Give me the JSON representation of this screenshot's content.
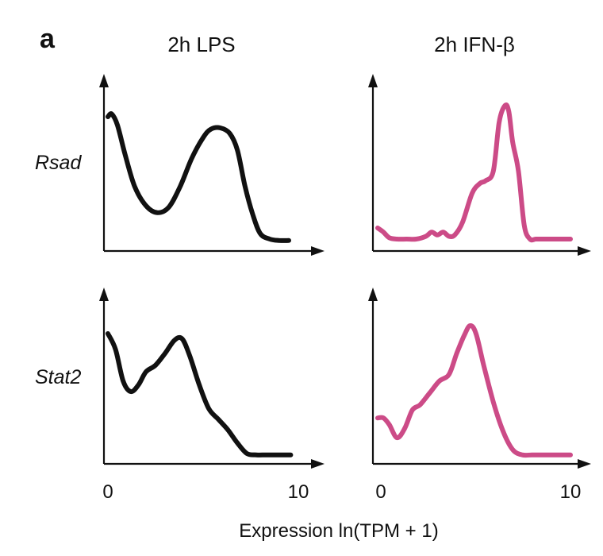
{
  "figure": {
    "panel_letter": "a",
    "columns": [
      "2h LPS",
      "2h IFN-β"
    ],
    "rows": [
      "Rsad",
      "Stat2"
    ],
    "x_tick_labels": [
      "0",
      "10"
    ],
    "xlabel": "Expression ln(TPM + 1)"
  },
  "colors": {
    "lps": "#111111",
    "ifn": "#cc4b87",
    "axis": "#111111"
  },
  "chart_data": [
    {
      "type": "line",
      "title": "2h LPS",
      "ylabel": "Rsad",
      "xlim": [
        0,
        10
      ],
      "ylim": [
        0,
        1
      ],
      "series": [
        {
          "color": "#111111",
          "x": [
            0,
            0.2,
            0.5,
            0.9,
            1.4,
            2.0,
            2.6,
            3.2,
            3.8,
            4.4,
            5.0,
            5.4,
            5.9,
            6.4,
            6.8,
            7.2,
            7.6,
            8.0,
            8.5,
            9.0,
            9.5
          ],
          "y": [
            0.92,
            0.94,
            0.86,
            0.65,
            0.42,
            0.28,
            0.23,
            0.27,
            0.42,
            0.62,
            0.77,
            0.83,
            0.84,
            0.8,
            0.68,
            0.42,
            0.22,
            0.08,
            0.04,
            0.03,
            0.03
          ]
        }
      ]
    },
    {
      "type": "line",
      "title": "2h IFN-β",
      "ylabel": "Rsad",
      "xlim": [
        0,
        10
      ],
      "ylim": [
        0,
        1
      ],
      "series": [
        {
          "color": "#cc4b87",
          "x": [
            0,
            0.3,
            0.6,
            1.0,
            1.5,
            2.0,
            2.5,
            2.8,
            3.1,
            3.4,
            3.7,
            4.0,
            4.4,
            4.9,
            5.3,
            5.6,
            6.0,
            6.3,
            6.6,
            6.8,
            7.0,
            7.3,
            7.6,
            7.9,
            8.2,
            8.6,
            9.0,
            9.5,
            10.0
          ],
          "y": [
            0.12,
            0.09,
            0.05,
            0.04,
            0.04,
            0.04,
            0.06,
            0.09,
            0.07,
            0.09,
            0.06,
            0.07,
            0.16,
            0.37,
            0.44,
            0.46,
            0.53,
            0.88,
            1.0,
            0.96,
            0.74,
            0.53,
            0.14,
            0.04,
            0.04,
            0.04,
            0.04,
            0.04,
            0.04
          ]
        }
      ]
    },
    {
      "type": "line",
      "title": "2h LPS",
      "ylabel": "Stat2",
      "xlim": [
        0,
        10
      ],
      "ylim": [
        0,
        1
      ],
      "series": [
        {
          "color": "#111111",
          "x": [
            0,
            0.4,
            0.8,
            1.2,
            1.6,
            2.0,
            2.5,
            3.0,
            3.5,
            3.9,
            4.3,
            4.8,
            5.3,
            5.8,
            6.3,
            6.8,
            7.3,
            7.8,
            8.3,
            9.0,
            9.6
          ],
          "y": [
            0.94,
            0.82,
            0.58,
            0.5,
            0.55,
            0.65,
            0.7,
            0.79,
            0.89,
            0.9,
            0.77,
            0.55,
            0.37,
            0.29,
            0.21,
            0.11,
            0.03,
            0.02,
            0.02,
            0.02,
            0.02
          ]
        }
      ]
    },
    {
      "type": "line",
      "title": "2h IFN-β",
      "ylabel": "Stat2",
      "xlim": [
        0,
        10
      ],
      "ylim": [
        0,
        1
      ],
      "series": [
        {
          "color": "#cc4b87",
          "x": [
            0,
            0.3,
            0.6,
            1.0,
            1.4,
            1.8,
            2.2,
            2.7,
            3.2,
            3.7,
            4.1,
            4.5,
            4.8,
            5.1,
            5.5,
            6.0,
            6.5,
            7.0,
            7.5,
            8.0,
            8.5,
            9.0,
            9.5,
            10.0
          ],
          "y": [
            0.3,
            0.3,
            0.25,
            0.15,
            0.22,
            0.36,
            0.4,
            0.49,
            0.58,
            0.63,
            0.79,
            0.93,
            1.0,
            0.94,
            0.7,
            0.42,
            0.2,
            0.06,
            0.02,
            0.02,
            0.02,
            0.02,
            0.02,
            0.02
          ]
        }
      ]
    }
  ]
}
